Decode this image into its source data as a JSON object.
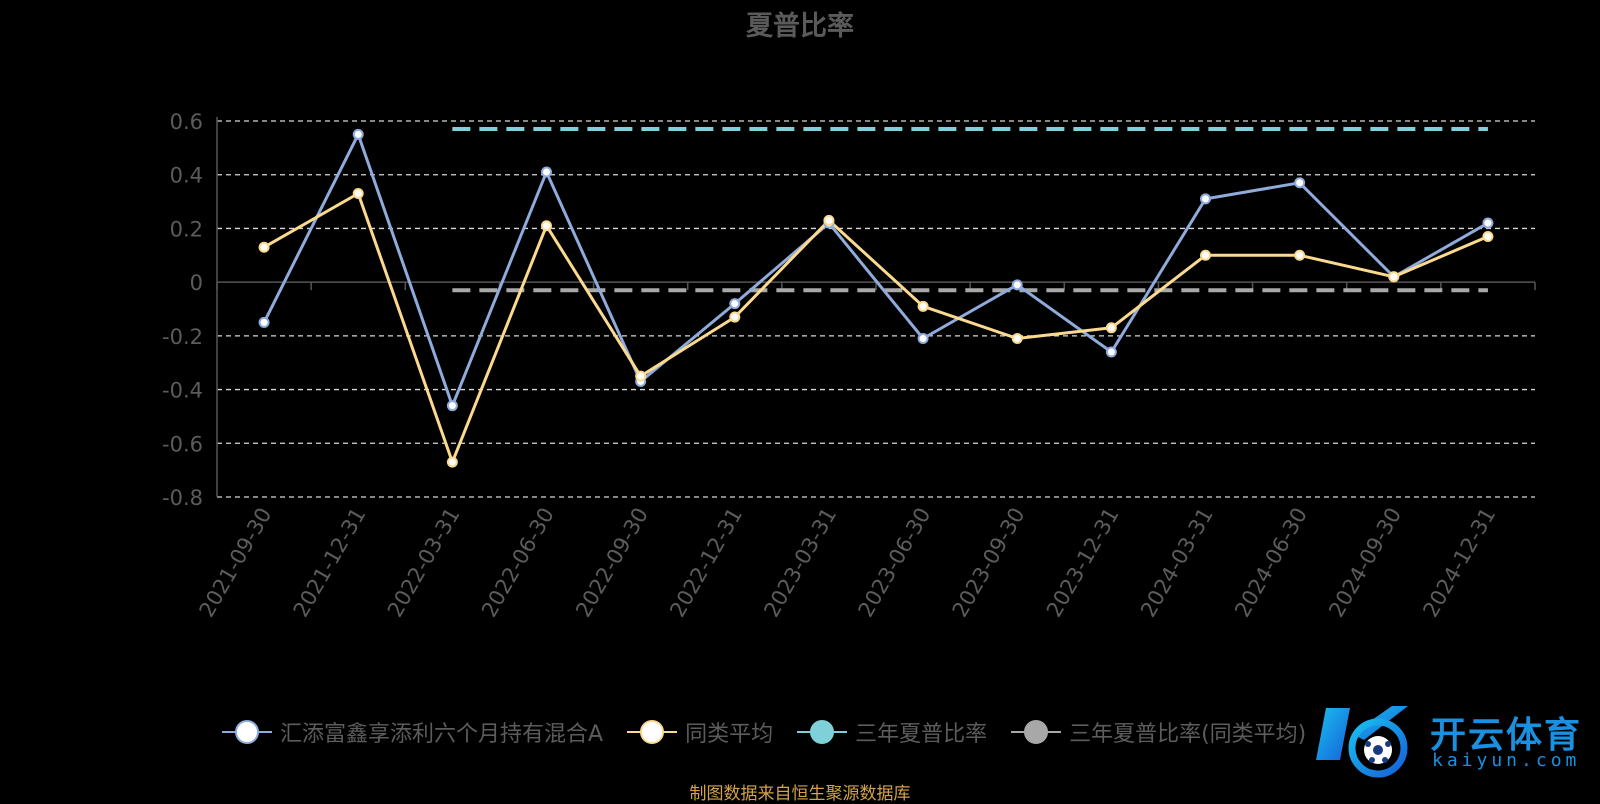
{
  "chart_data": {
    "type": "line",
    "title": "夏普比率",
    "categories": [
      "2021-09-30",
      "2021-12-31",
      "2022-03-31",
      "2022-06-30",
      "2022-09-30",
      "2022-12-31",
      "2023-03-31",
      "2023-06-30",
      "2023-09-30",
      "2023-12-31",
      "2024-03-31",
      "2024-06-30",
      "2024-09-30",
      "2024-12-31"
    ],
    "y_ticks": [
      "0.6",
      "0.4",
      "0.2",
      "0",
      "-0.2",
      "-0.4",
      "-0.6",
      "-0.8"
    ],
    "ylim": [
      -0.8,
      0.6
    ],
    "grid": true,
    "legend_position": "bottom",
    "series": [
      {
        "name": "汇添富鑫享添利六个月持有混合A",
        "color": "#8fabdb",
        "values": [
          -0.15,
          0.55,
          -0.46,
          0.41,
          -0.37,
          -0.08,
          0.22,
          -0.21,
          -0.01,
          -0.26,
          0.31,
          0.37,
          0.02,
          0.22
        ]
      },
      {
        "name": "同类平均",
        "color": "#fbd98f",
        "values": [
          0.13,
          0.33,
          -0.67,
          0.21,
          -0.35,
          -0.13,
          0.23,
          -0.09,
          -0.21,
          -0.17,
          0.1,
          0.1,
          0.02,
          0.17
        ]
      },
      {
        "name": "三年夏普比率",
        "color": "#7fd0d8",
        "value": 0.57
      },
      {
        "name": "三年夏普比率(同类平均)",
        "color": "#a8a8a8",
        "value": -0.03
      }
    ]
  },
  "legend": {
    "item1": "汇添富鑫享添利六个月持有混合A",
    "item2": "同类平均",
    "item3": "三年夏普比率",
    "item4": "三年夏普比率(同类平均)"
  },
  "source": "制图数据来自恒生聚源数据库",
  "watermark": {
    "name": "开云体育",
    "url": "kaiyun.com"
  }
}
